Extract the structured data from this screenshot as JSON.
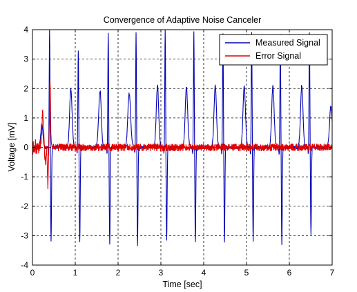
{
  "chart_data": {
    "type": "line",
    "title": "Convergence of Adaptive Noise Canceler",
    "xlabel": "Time [sec]",
    "ylabel": "Voltage [mV]",
    "xlim": [
      0,
      7
    ],
    "ylim": [
      -4,
      4
    ],
    "xticks": [
      "0",
      "1",
      "2",
      "3",
      "4",
      "5",
      "6",
      "7"
    ],
    "yticks": [
      "-4",
      "-3",
      "-2",
      "-1",
      "0",
      "1",
      "2",
      "3",
      "4"
    ],
    "grid": true,
    "grid_style": "dashed",
    "legend_position": "top-right",
    "series": [
      {
        "name": "Measured Signal",
        "color": "#0000b4",
        "beat_times": [
          0.4,
          1.07,
          1.77,
          2.42,
          3.1,
          3.77,
          4.45,
          5.12,
          5.79,
          6.47
        ],
        "peak_heights": [
          4.0,
          3.3,
          3.9,
          3.9,
          4.0,
          3.9,
          3.9,
          3.9,
          3.9,
          3.9
        ],
        "trough_depths": [
          -3.2,
          -3.25,
          -3.3,
          -3.3,
          -3.2,
          -3.25,
          -3.2,
          -3.2,
          -3.3,
          -3.0
        ],
        "p_wave_heights": [
          0.8,
          0.6,
          0.65,
          0.7,
          0.7,
          0.7,
          0.7,
          0.7,
          0.7,
          0.7
        ],
        "t_wave_heights": [
          1.4,
          1.4,
          1.4,
          1.4,
          1.4,
          1.4,
          1.4,
          1.4,
          1.4,
          1.4
        ],
        "baseline": 0.0
      },
      {
        "name": "Error Signal",
        "color": "#e00000",
        "transient_time_range": [
          0,
          0.5
        ],
        "transient_peak": 2.2,
        "transient_trough": -1.3,
        "steady_state_amplitude": 0.12
      }
    ]
  }
}
